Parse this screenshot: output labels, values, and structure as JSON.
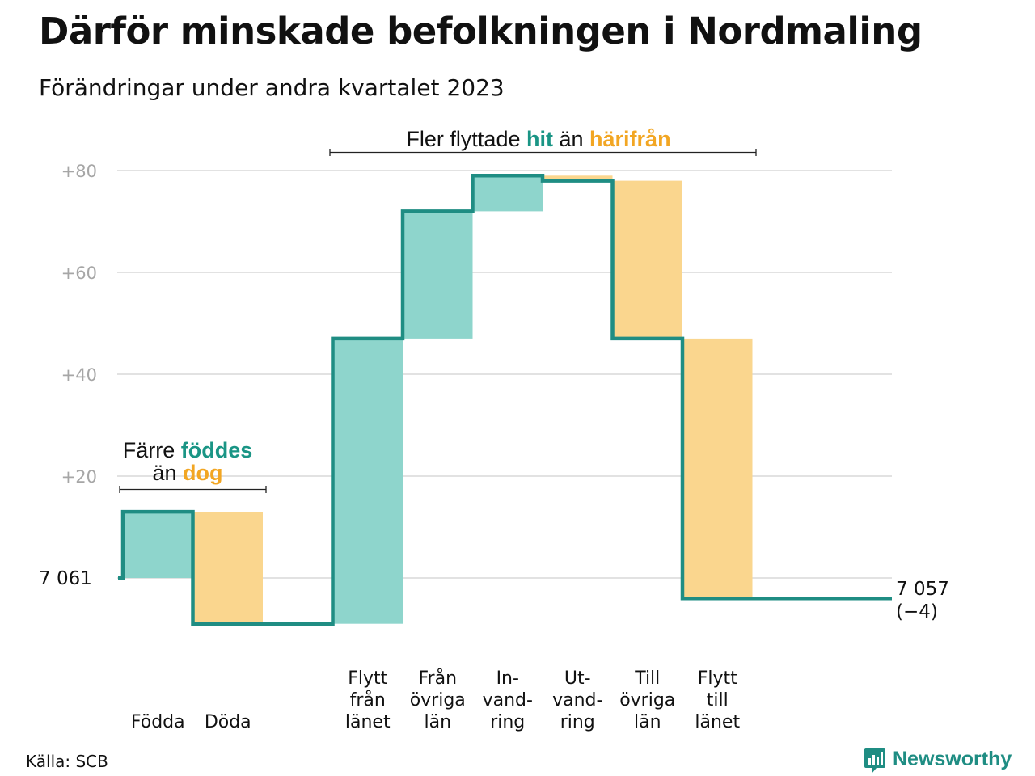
{
  "header": {
    "title": "Därför minskade befolkningen i Nordmaling",
    "subtitle": "Förändringar under andra kvartalet 2023"
  },
  "footer": {
    "source": "Källa: SCB",
    "brand": "Newsworthy"
  },
  "colors": {
    "increase": "#8ed5cc",
    "decrease": "#fad68e",
    "line": "#1f8d83",
    "accent_green": "#1a9585",
    "accent_orange": "#f2a623",
    "grid": "#e2e2e2",
    "tick": "#a6a6a6"
  },
  "chart_data": {
    "type": "waterfall",
    "start": {
      "value": 7061,
      "label": "7  061"
    },
    "end": {
      "value": 7057,
      "label": "7 057",
      "change_label": "(−4)"
    },
    "y_ticks": [
      {
        "offset": 20,
        "label": "+20"
      },
      {
        "offset": 40,
        "label": "+40"
      },
      {
        "offset": 60,
        "label": "+60"
      },
      {
        "offset": 80,
        "label": "+80"
      }
    ],
    "ylim": [
      -9,
      83
    ],
    "grid": true,
    "steps": [
      {
        "category": "Födda",
        "label_lines": [
          "Födda"
        ],
        "change": 13
      },
      {
        "category": "Döda",
        "label_lines": [
          "Döda"
        ],
        "change": -22
      },
      {
        "category": "",
        "label_lines": [],
        "change": 0
      },
      {
        "category": "Flytt från länet",
        "label_lines": [
          "Flytt",
          "från",
          "länet"
        ],
        "change": 56
      },
      {
        "category": "Från övriga län",
        "label_lines": [
          "Från",
          "övriga",
          "län"
        ],
        "change": 25
      },
      {
        "category": "In-vand-ring",
        "label_lines": [
          "In-",
          "vand-",
          "ring"
        ],
        "change": 7
      },
      {
        "category": "Ut-vand-ring",
        "label_lines": [
          "Ut-",
          "vand-",
          "ring"
        ],
        "change": -1
      },
      {
        "category": "Till övriga län",
        "label_lines": [
          "Till",
          "övriga",
          "län"
        ],
        "change": -31
      },
      {
        "category": "Flytt till länet",
        "label_lines": [
          "Flytt",
          "till",
          "länet"
        ],
        "change": -51
      },
      {
        "category": "",
        "label_lines": [],
        "change": 0
      }
    ],
    "annotations": [
      {
        "id": "birth",
        "line1": [
          {
            "text": "Färre ",
            "style": "plain"
          },
          {
            "text": "föddes",
            "style": "green"
          }
        ],
        "line2": [
          {
            "text": "än ",
            "style": "plain"
          },
          {
            "text": "dog",
            "style": "orange"
          }
        ]
      },
      {
        "id": "migration",
        "line1": [
          {
            "text": "Fler flyttade ",
            "style": "plain"
          },
          {
            "text": "hit",
            "style": "green"
          },
          {
            "text": " än ",
            "style": "plain"
          },
          {
            "text": "härifrån",
            "style": "orange"
          }
        ]
      }
    ]
  }
}
